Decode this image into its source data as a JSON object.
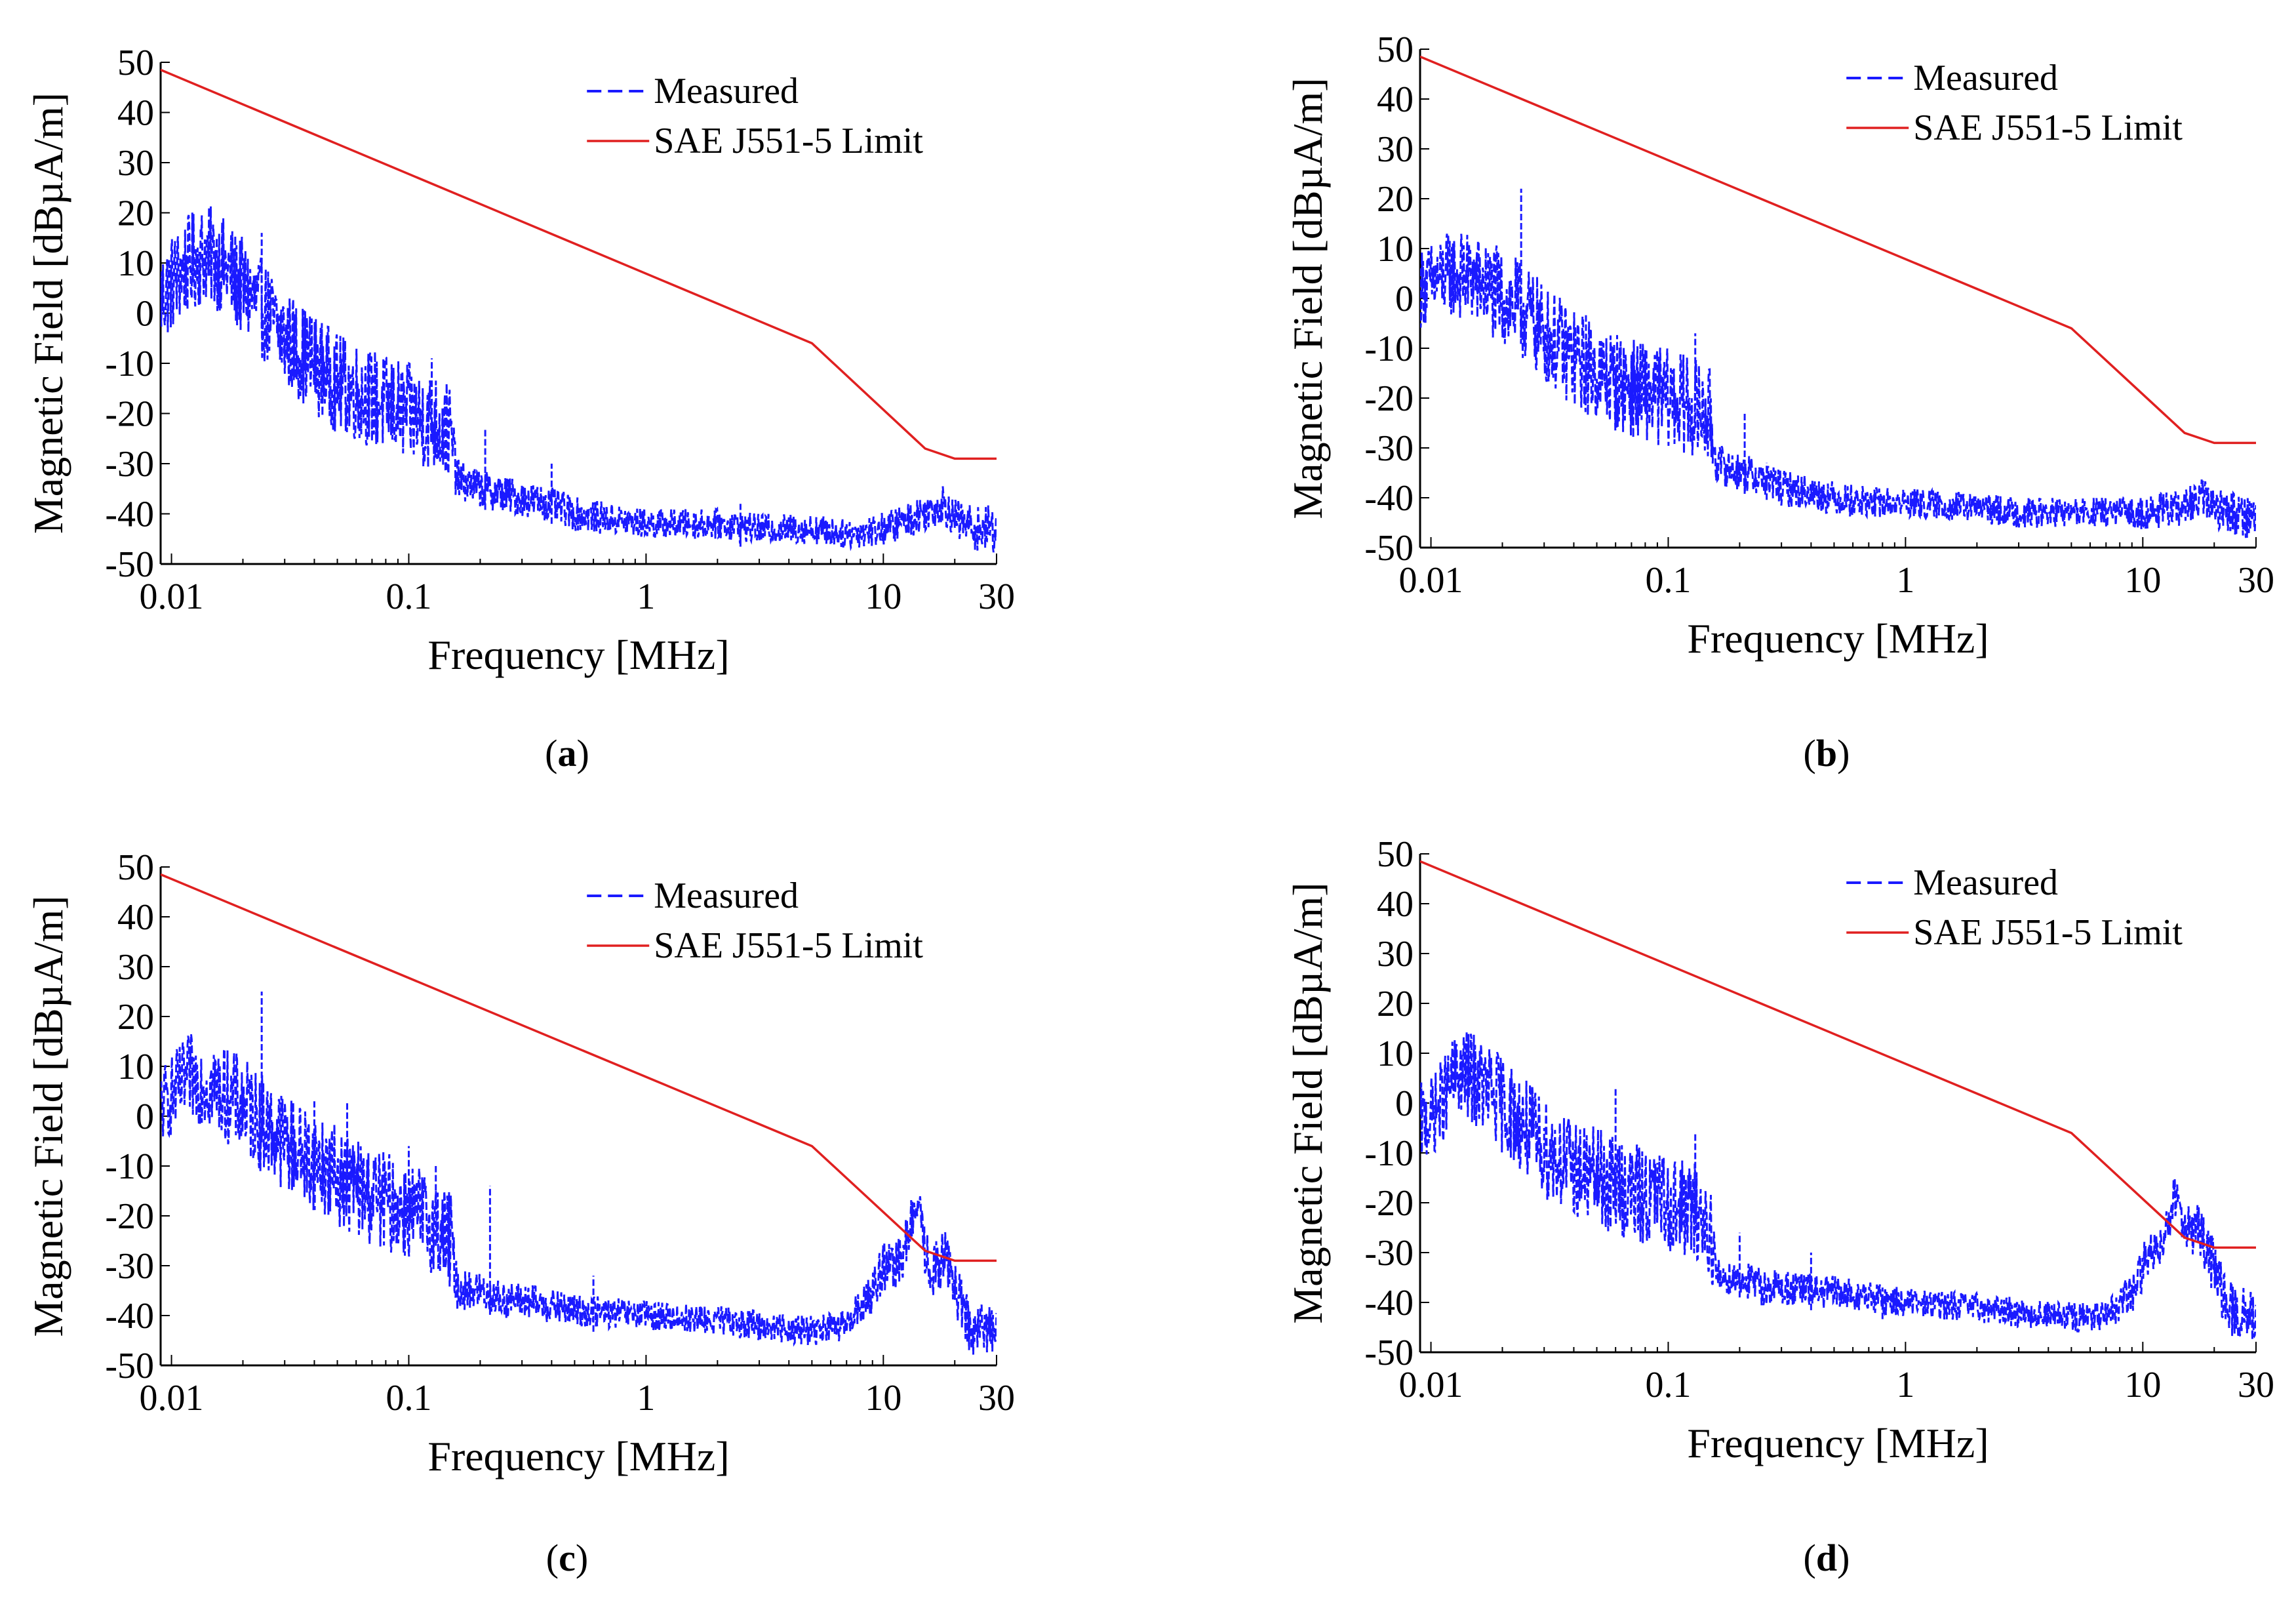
{
  "colors": {
    "measured": "#1a1aff",
    "limit": "#e02020",
    "axis": "#000000"
  },
  "chart_data": [
    {
      "type": "line",
      "label_letter": "a",
      "xlabel": "Frequency [MHz]",
      "ylabel": "Magnetic Field [dBµA/m]",
      "x_scale": "log",
      "xlim": [
        0.009,
        30
      ],
      "ylim": [
        -50,
        50
      ],
      "x_ticks": [
        0.01,
        0.1,
        1,
        10,
        30
      ],
      "x_tick_labels": [
        "0.01",
        "0.1",
        "1",
        "10",
        "30"
      ],
      "y_ticks": [
        -50,
        -40,
        -30,
        -20,
        -10,
        0,
        10,
        20,
        30,
        40,
        50
      ],
      "y_tick_labels": [
        "-50",
        "-40",
        "-30",
        "-20",
        "-10",
        "0",
        "10",
        "20",
        "30",
        "40",
        "50"
      ],
      "legend_position": "top-right",
      "series": [
        {
          "name": "Measured",
          "style": "dashed",
          "x": [
            0.009,
            0.01,
            0.012,
            0.014,
            0.016,
            0.02,
            0.025,
            0.03,
            0.04,
            0.05,
            0.07,
            0.1,
            0.13,
            0.15,
            0.16,
            0.2,
            0.25,
            0.3,
            0.4,
            0.5,
            0.7,
            1,
            2,
            3,
            5,
            7,
            10,
            13,
            16,
            18,
            20,
            25,
            30
          ],
          "y": [
            3,
            6,
            10,
            12,
            10,
            5,
            0,
            -5,
            -10,
            -14,
            -17,
            -20,
            -22,
            -24,
            -33,
            -35,
            -36,
            -37,
            -38,
            -40,
            -41,
            -42,
            -42,
            -43,
            -43,
            -44,
            -43,
            -41,
            -39,
            -38,
            -41,
            -43,
            -43
          ],
          "spikes": [
            [
              0.0145,
              17
            ],
            [
              0.024,
              16
            ],
            [
              0.03,
              -5
            ],
            [
              0.05,
              -14
            ],
            [
              0.09,
              -16
            ],
            [
              0.125,
              -9
            ],
            [
              0.21,
              -23
            ],
            [
              0.4,
              -30
            ],
            [
              2.5,
              -38
            ]
          ],
          "noise_band": [
            [
              0.009,
              10
            ],
            [
              0.02,
              10
            ],
            [
              0.15,
              10
            ],
            [
              0.16,
              4
            ],
            [
              1,
              3
            ],
            [
              7,
              3
            ],
            [
              20,
              4
            ],
            [
              30,
              5
            ]
          ]
        },
        {
          "name": "SAE J551-5 Limit",
          "style": "solid",
          "x": [
            0.009,
            5,
            15,
            20,
            30
          ],
          "y": [
            48.5,
            -6,
            -27,
            -29,
            -29
          ]
        }
      ]
    },
    {
      "type": "line",
      "label_letter": "b",
      "xlabel": "Frequency [MHz]",
      "ylabel": "Magnetic Field [dBµA/m]",
      "x_scale": "log",
      "xlim": [
        0.009,
        30
      ],
      "ylim": [
        -50,
        50
      ],
      "x_ticks": [
        0.01,
        0.1,
        1,
        10,
        30
      ],
      "x_tick_labels": [
        "0.01",
        "0.1",
        "1",
        "10",
        "30"
      ],
      "y_ticks": [
        -50,
        -40,
        -30,
        -20,
        -10,
        0,
        10,
        20,
        30,
        40,
        50
      ],
      "y_tick_labels": [
        "-50",
        "-40",
        "-30",
        "-20",
        "-10",
        "0",
        "10",
        "20",
        "30",
        "40",
        "50"
      ],
      "legend_position": "top-right",
      "series": [
        {
          "name": "Measured",
          "style": "dashed",
          "x": [
            0.009,
            0.01,
            0.012,
            0.015,
            0.02,
            0.025,
            0.03,
            0.04,
            0.05,
            0.07,
            0.1,
            0.13,
            0.15,
            0.16,
            0.2,
            0.25,
            0.3,
            0.4,
            0.5,
            0.7,
            1,
            2,
            3,
            5,
            7,
            10,
            15,
            18,
            20,
            25,
            30
          ],
          "y": [
            2,
            3,
            5,
            4,
            0,
            -3,
            -7,
            -12,
            -15,
            -18,
            -20,
            -22,
            -24,
            -33,
            -35,
            -36,
            -38,
            -39,
            -40,
            -41,
            -41,
            -42,
            -43,
            -43,
            -43,
            -43,
            -42,
            -40,
            -42,
            -43,
            -44
          ],
          "spikes": [
            [
              0.012,
              12
            ],
            [
              0.024,
              22
            ],
            [
              0.045,
              -3
            ],
            [
              0.08,
              -10
            ],
            [
              0.13,
              -7
            ],
            [
              0.21,
              -23
            ],
            [
              0.26,
              -33
            ]
          ],
          "noise_band": [
            [
              0.009,
              8
            ],
            [
              0.02,
              10
            ],
            [
              0.15,
              10
            ],
            [
              0.16,
              4
            ],
            [
              1,
              3
            ],
            [
              7,
              3
            ],
            [
              20,
              4
            ],
            [
              30,
              5
            ]
          ]
        },
        {
          "name": "SAE J551-5 Limit",
          "style": "solid",
          "x": [
            0.009,
            5,
            15,
            20,
            30
          ],
          "y": [
            48.5,
            -6,
            -27,
            -29,
            -29
          ]
        }
      ]
    },
    {
      "type": "line",
      "label_letter": "c",
      "xlabel": "Frequency [MHz]",
      "ylabel": "Magnetic Field [dBµA/m]",
      "x_scale": "log",
      "xlim": [
        0.009,
        30
      ],
      "ylim": [
        -50,
        50
      ],
      "x_ticks": [
        0.01,
        0.1,
        1,
        10,
        30
      ],
      "x_tick_labels": [
        "0.01",
        "0.1",
        "1",
        "10",
        "30"
      ],
      "y_ticks": [
        -50,
        -40,
        -30,
        -20,
        -10,
        0,
        10,
        20,
        30,
        40,
        50
      ],
      "y_tick_labels": [
        "-50",
        "-40",
        "-30",
        "-20",
        "-10",
        "0",
        "10",
        "20",
        "30",
        "40",
        "50"
      ],
      "legend_position": "top-right",
      "series": [
        {
          "name": "Measured",
          "style": "dashed",
          "x": [
            0.009,
            0.01,
            0.012,
            0.015,
            0.02,
            0.025,
            0.03,
            0.04,
            0.05,
            0.07,
            0.1,
            0.13,
            0.15,
            0.16,
            0.2,
            0.25,
            0.3,
            0.5,
            1,
            2,
            3,
            5,
            7,
            9,
            10,
            11,
            12,
            13,
            14,
            15,
            16,
            17,
            18,
            20,
            22,
            25,
            30
          ],
          "y": [
            2,
            4,
            8,
            6,
            2,
            -2,
            -5,
            -9,
            -12,
            -16,
            -19,
            -22,
            -25,
            -35,
            -35,
            -37,
            -37,
            -39,
            -40,
            -41,
            -42,
            -43,
            -42,
            -35,
            -30,
            -31,
            -28,
            -22,
            -18,
            -27,
            -32,
            -30,
            -28,
            -33,
            -41,
            -43,
            -42
          ],
          "spikes": [
            [
              0.012,
              14
            ],
            [
              0.024,
              25
            ],
            [
              0.04,
              3
            ],
            [
              0.055,
              3
            ],
            [
              0.1,
              -6
            ],
            [
              0.13,
              -10
            ],
            [
              0.22,
              -14
            ],
            [
              0.6,
              -32
            ]
          ],
          "noise_band": [
            [
              0.009,
              8
            ],
            [
              0.02,
              10
            ],
            [
              0.15,
              10
            ],
            [
              0.16,
              4
            ],
            [
              1,
              3
            ],
            [
              7,
              3
            ],
            [
              10,
              5
            ],
            [
              14,
              5
            ],
            [
              20,
              6
            ],
            [
              30,
              5
            ]
          ]
        },
        {
          "name": "SAE J551-5 Limit",
          "style": "solid",
          "x": [
            0.009,
            5,
            15,
            20,
            30
          ],
          "y": [
            48.5,
            -6,
            -27,
            -29,
            -29
          ]
        }
      ]
    },
    {
      "type": "line",
      "label_letter": "d",
      "xlabel": "Frequency [MHz]",
      "ylabel": "Magnetic Field [dBµA/m]",
      "x_scale": "log",
      "xlim": [
        0.009,
        30
      ],
      "ylim": [
        -50,
        50
      ],
      "x_ticks": [
        0.01,
        0.1,
        1,
        10,
        30
      ],
      "x_tick_labels": [
        "0.01",
        "0.1",
        "1",
        "10",
        "30"
      ],
      "y_ticks": [
        -50,
        -40,
        -30,
        -20,
        -10,
        0,
        10,
        20,
        30,
        40,
        50
      ],
      "y_tick_labels": [
        "-50",
        "-40",
        "-30",
        "-20",
        "-10",
        "0",
        "10",
        "20",
        "30",
        "40",
        "50"
      ],
      "legend_position": "top-right",
      "series": [
        {
          "name": "Measured",
          "style": "dashed",
          "x": [
            0.009,
            0.01,
            0.011,
            0.013,
            0.015,
            0.02,
            0.025,
            0.03,
            0.04,
            0.05,
            0.07,
            0.1,
            0.13,
            0.15,
            0.16,
            0.2,
            0.25,
            0.3,
            0.5,
            1,
            2,
            3,
            5,
            7,
            9,
            10,
            11,
            12,
            13,
            14,
            15,
            16,
            17,
            18,
            20,
            22,
            25,
            30
          ],
          "y": [
            -4,
            -3,
            0,
            6,
            5,
            0,
            -5,
            -9,
            -13,
            -15,
            -18,
            -20,
            -22,
            -25,
            -35,
            -35,
            -37,
            -37,
            -38,
            -40,
            -41,
            -42,
            -43,
            -43,
            -38,
            -33,
            -30,
            -27,
            -22,
            -18,
            -24,
            -27,
            -23,
            -28,
            -33,
            -40,
            -42,
            -43
          ],
          "spikes": [
            [
              0.014,
              12
            ],
            [
              0.03,
              -5
            ],
            [
              0.06,
              3
            ],
            [
              0.09,
              -12
            ],
            [
              0.13,
              -6
            ],
            [
              0.2,
              -26
            ],
            [
              0.4,
              -30
            ],
            [
              0.8,
              -37
            ]
          ],
          "noise_band": [
            [
              0.009,
              8
            ],
            [
              0.02,
              10
            ],
            [
              0.15,
              10
            ],
            [
              0.16,
              4
            ],
            [
              1,
              3
            ],
            [
              7,
              3
            ],
            [
              10,
              5
            ],
            [
              14,
              5
            ],
            [
              20,
              6
            ],
            [
              30,
              5
            ]
          ]
        },
        {
          "name": "SAE J551-5 Limit",
          "style": "solid",
          "x": [
            0.009,
            5,
            15,
            20,
            30
          ],
          "y": [
            48.5,
            -6,
            -27,
            -29,
            -29
          ]
        }
      ]
    }
  ]
}
